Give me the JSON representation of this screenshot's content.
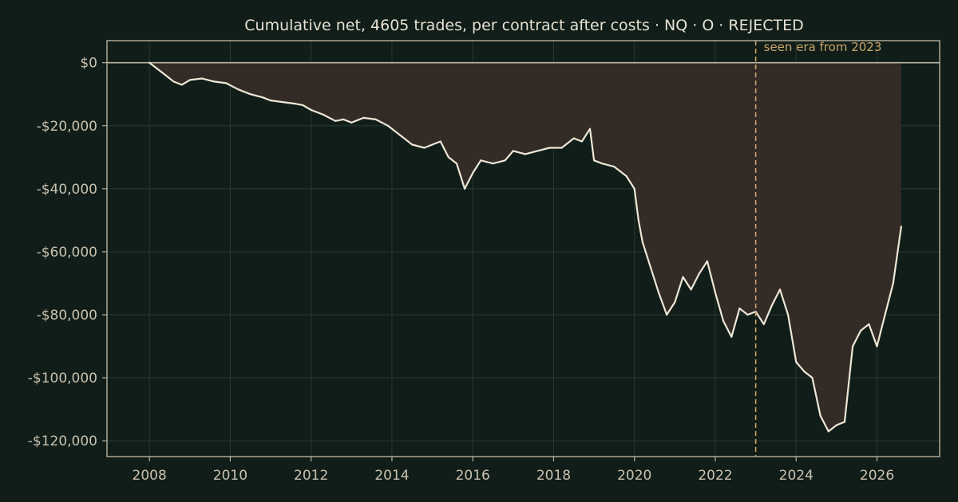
{
  "colors": {
    "background": "#101d18",
    "plot_background": "#101d18",
    "axis": "#b8b29f",
    "grid": "#2b3832",
    "line": "#eee7d6",
    "drawdown_fill": "#332b26",
    "zero_line": "#bdb6a4",
    "era_marker": "#c9a46a"
  },
  "chart_data": {
    "type": "line",
    "title": "Cumulative net, 4605 trades, per contract after costs  ·  NQ · O · REJECTED",
    "xlabel": "",
    "ylabel": "",
    "xlim": [
      2006.95,
      2027.55
    ],
    "ylim": [
      -125000,
      7000
    ],
    "x_ticks": [
      2008,
      2010,
      2012,
      2014,
      2016,
      2018,
      2020,
      2022,
      2024,
      2026
    ],
    "x_tick_labels": [
      "2008",
      "2010",
      "2012",
      "2014",
      "2016",
      "2018",
      "2020",
      "2022",
      "2024",
      "2026"
    ],
    "y_ticks": [
      0,
      -20000,
      -40000,
      -60000,
      -80000,
      -100000,
      -120000
    ],
    "y_tick_labels": [
      "$0",
      "-$20,000",
      "-$40,000",
      "-$60,000",
      "-$80,000",
      "-$100,000",
      "-$120,000"
    ],
    "grid": true,
    "legend": "none",
    "fill": "between series and zero",
    "annotations": [
      {
        "type": "vline",
        "x": 2023.0,
        "style": "dashed",
        "text": "seen era from 2023"
      }
    ],
    "series": [
      {
        "x": [
          2008.0,
          2008.3,
          2008.6,
          2008.8,
          2009.0,
          2009.3,
          2009.6,
          2009.9,
          2010.2,
          2010.5,
          2010.8,
          2011.0,
          2011.3,
          2011.6,
          2011.8,
          2012.0,
          2012.3,
          2012.6,
          2012.8,
          2013.0,
          2013.3,
          2013.6,
          2013.9,
          2014.2,
          2014.5,
          2014.8,
          2015.0,
          2015.2,
          2015.4,
          2015.6,
          2015.8,
          2016.0,
          2016.2,
          2016.5,
          2016.8,
          2017.0,
          2017.3,
          2017.6,
          2017.9,
          2018.2,
          2018.5,
          2018.7,
          2018.9,
          2019.0,
          2019.2,
          2019.5,
          2019.8,
          2020.0,
          2020.1,
          2020.2,
          2020.4,
          2020.6,
          2020.8,
          2021.0,
          2021.2,
          2021.4,
          2021.6,
          2021.8,
          2022.0,
          2022.2,
          2022.4,
          2022.6,
          2022.8,
          2023.0,
          2023.2,
          2023.4,
          2023.6,
          2023.8,
          2024.0,
          2024.2,
          2024.4,
          2024.6,
          2024.8,
          2025.0,
          2025.2,
          2025.4,
          2025.6,
          2025.8,
          2026.0,
          2026.2,
          2026.4,
          2026.6
        ],
        "y": [
          0,
          -3000,
          -6000,
          -7000,
          -5500,
          -5000,
          -6000,
          -6500,
          -8500,
          -10000,
          -11000,
          -12000,
          -12500,
          -13000,
          -13500,
          -15000,
          -16500,
          -18500,
          -18000,
          -19000,
          -17500,
          -18000,
          -20000,
          -23000,
          -26000,
          -27000,
          -26000,
          -25000,
          -30000,
          -32000,
          -40000,
          -35000,
          -31000,
          -32000,
          -31000,
          -28000,
          -29000,
          -28000,
          -27000,
          -27000,
          -24000,
          -25000,
          -21000,
          -31000,
          -32000,
          -33000,
          -36000,
          -40000,
          -50000,
          -57000,
          -65000,
          -73000,
          -80000,
          -76000,
          -68000,
          -72000,
          -67000,
          -63000,
          -73000,
          -82000,
          -87000,
          -78000,
          -80000,
          -79000,
          -83000,
          -77000,
          -72000,
          -80000,
          -95000,
          -98000,
          -100000,
          -112000,
          -117000,
          -115000,
          -114000,
          -90000,
          -85000,
          -83000,
          -90000,
          -80000,
          -70000,
          -52000
        ]
      }
    ]
  }
}
